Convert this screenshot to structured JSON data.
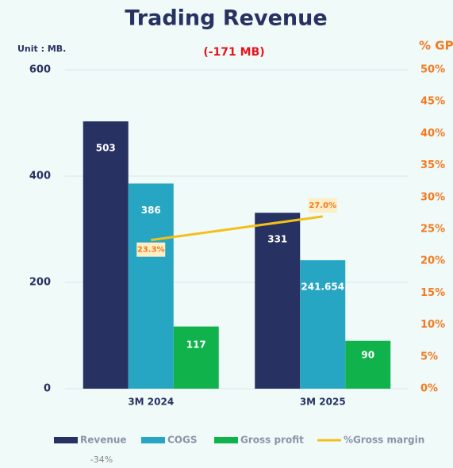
{
  "chart_data": {
    "type": "bar",
    "title": "Trading Revenue",
    "subtitle": "(-171 MB)",
    "y_unit_label": "Unit : MB.",
    "y2_label": "% GP",
    "annotation": "-34%",
    "categories": [
      "3M 2024",
      "3M 2025"
    ],
    "series": [
      {
        "name": "Revenue",
        "color": "#283262",
        "values": [
          503,
          331
        ]
      },
      {
        "name": "COGS",
        "color": "#27a6c4",
        "values": [
          386,
          241.654
        ]
      },
      {
        "name": "Gross profit",
        "color": "#10b24c",
        "values": [
          117,
          90
        ]
      },
      {
        "name": "%Gross margin",
        "color": "#f4bf1a",
        "type": "line",
        "axis": "y2",
        "values": [
          23.3,
          27.0
        ],
        "value_labels": [
          "23.3%",
          "27.0%"
        ]
      }
    ],
    "ylim": [
      0,
      600
    ],
    "yticks": [
      0,
      200,
      400,
      600
    ],
    "y2lim": [
      0,
      50
    ],
    "y2ticks": [
      {
        "value": 0,
        "label": "0%"
      },
      {
        "value": 5,
        "label": "5%"
      },
      {
        "value": 10,
        "label": "10%"
      },
      {
        "value": 15,
        "label": "15%"
      },
      {
        "value": 20,
        "label": "20%"
      },
      {
        "value": 25,
        "label": "25%"
      },
      {
        "value": 30,
        "label": "30%"
      },
      {
        "value": 35,
        "label": "35%"
      },
      {
        "value": 40,
        "label": "40%"
      },
      {
        "value": 45,
        "label": "45%"
      },
      {
        "value": 50,
        "label": "50%"
      }
    ],
    "grid": true
  }
}
